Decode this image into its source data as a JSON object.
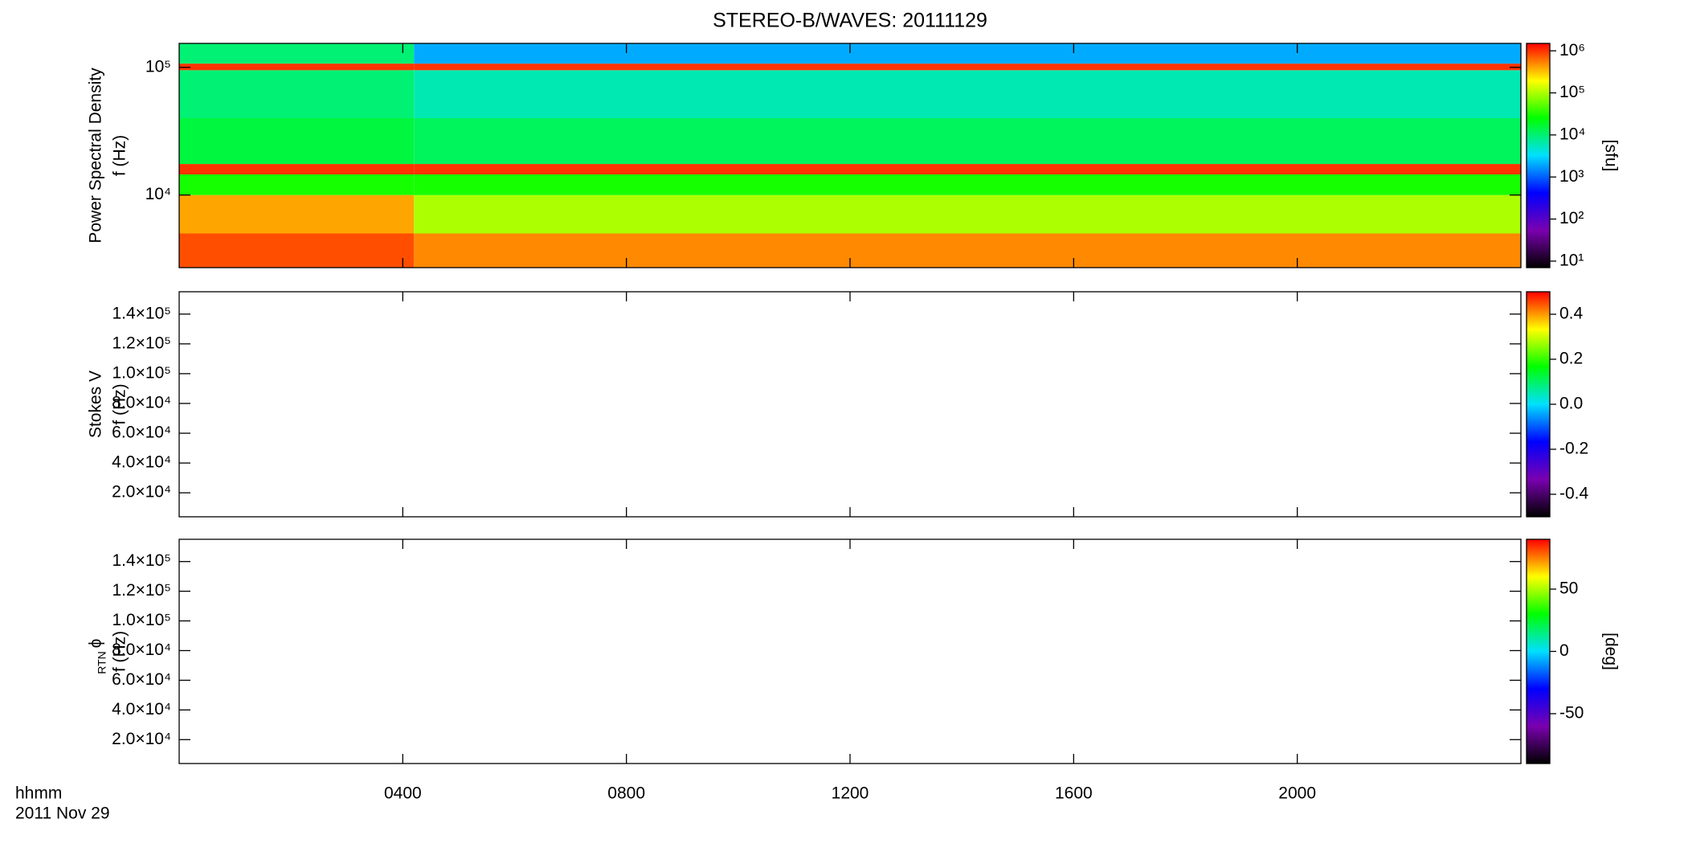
{
  "title": "STEREO-B/WAVES: 20111129",
  "x_label": "hhmm",
  "x_date": "2011 Nov 29",
  "colormap": [
    "#000000",
    "#7a00b0",
    "#0000ff",
    "#00e0ff",
    "#00ff00",
    "#ffff00",
    "#ff0000"
  ],
  "chart_data": [
    {
      "type": "heatmap",
      "ylabel": [
        "Power Spectral Density",
        "f (Hz)"
      ],
      "xlim": [
        0,
        24
      ],
      "ylim": [
        2700,
        154000
      ],
      "ylog": true,
      "yticks": [
        {
          "value": 10000,
          "label": "10⁴"
        },
        {
          "value": 100000,
          "label": "10⁵"
        }
      ],
      "x_edges": [
        0,
        4.2,
        24
      ],
      "y_edges": [
        2700,
        5000,
        10000,
        14500,
        17500,
        40000,
        95000,
        107000,
        154000
      ],
      "z": [
        [
          800000,
          400000,
          30000,
          1000000,
          15000,
          10000,
          1000000,
          10000
        ],
        [
          500000,
          100000,
          30000,
          1000000,
          12000,
          6000,
          1000000,
          2000
        ]
      ],
      "colorbar": {
        "lim": [
          7,
          1500000
        ],
        "log": true,
        "label": "[sfu]",
        "ticks": [
          {
            "value": 10,
            "label": "10¹"
          },
          {
            "value": 100,
            "label": "10²"
          },
          {
            "value": 1000,
            "label": "10³"
          },
          {
            "value": 10000,
            "label": "10⁴"
          },
          {
            "value": 100000,
            "label": "10⁵"
          },
          {
            "value": 1000000,
            "label": "10⁶"
          }
        ]
      }
    },
    {
      "type": "heatmap",
      "ylabel": [
        "Stokes V",
        "f (Hz)"
      ],
      "xlim": [
        0,
        24
      ],
      "ylim": [
        3900,
        155000
      ],
      "yticks": [
        {
          "value": 20000,
          "label": "2.0×10⁴"
        },
        {
          "value": 40000,
          "label": "4.0×10⁴"
        },
        {
          "value": 60000,
          "label": "6.0×10⁴"
        },
        {
          "value": 80000,
          "label": "8.0×10⁴"
        },
        {
          "value": 100000,
          "label": "1.0×10⁵"
        },
        {
          "value": 120000,
          "label": "1.2×10⁵"
        },
        {
          "value": 140000,
          "label": "1.4×10⁵"
        }
      ],
      "colorbar": {
        "lim": [
          -0.5,
          0.5
        ],
        "ticks": [
          -0.4,
          -0.2,
          {
            "value": 0,
            "label": "0.0"
          },
          0.2,
          0.4
        ]
      }
    },
    {
      "type": "heatmap",
      "ylabel_symbol": "ϕ",
      "ylabel_subscript": "RTN",
      "ylabel": [
        "f (Hz)"
      ],
      "xlim": [
        0,
        24
      ],
      "ylim": [
        3900,
        155000
      ],
      "yticks": [
        {
          "value": 20000,
          "label": "2.0×10⁴"
        },
        {
          "value": 40000,
          "label": "4.0×10⁴"
        },
        {
          "value": 60000,
          "label": "6.0×10⁴"
        },
        {
          "value": 80000,
          "label": "8.0×10⁴"
        },
        {
          "value": 100000,
          "label": "1.0×10⁵"
        },
        {
          "value": 120000,
          "label": "1.2×10⁵"
        },
        {
          "value": 140000,
          "label": "1.4×10⁵"
        }
      ],
      "xticks": [
        {
          "value": 4,
          "label": "0400"
        },
        {
          "value": 8,
          "label": "0800"
        },
        {
          "value": 12,
          "label": "1200"
        },
        {
          "value": 16,
          "label": "1600"
        },
        {
          "value": 20,
          "label": "2000"
        }
      ],
      "colorbar": {
        "lim": [
          -90,
          90
        ],
        "label": "[deg]",
        "ticks": [
          -50,
          0,
          50
        ]
      }
    }
  ]
}
